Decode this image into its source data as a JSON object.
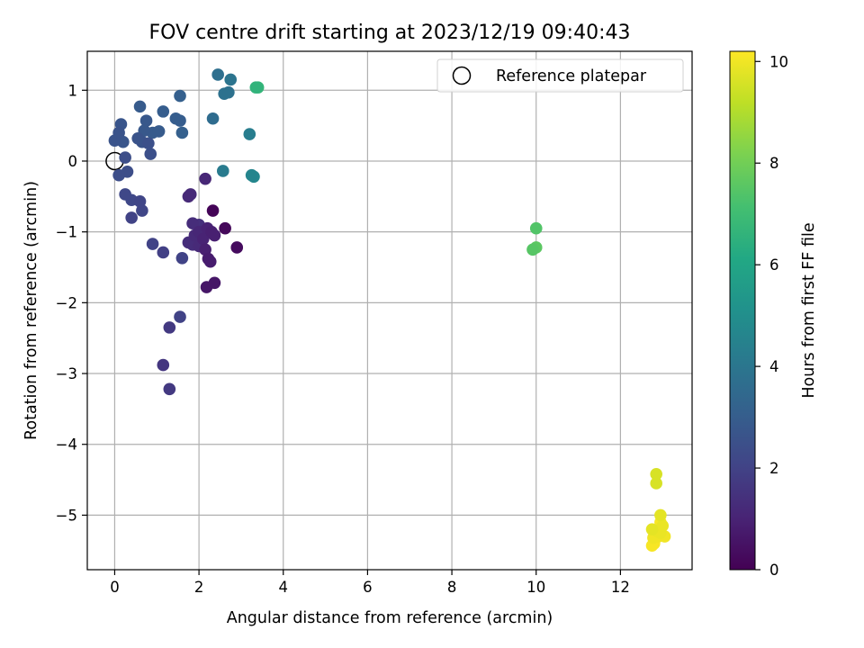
{
  "chart_data": {
    "type": "scatter",
    "title": "FOV centre drift starting at 2023/12/19 09:40:43",
    "xlabel": "Angular distance from reference (arcmin)",
    "ylabel": "Rotation from reference (arcmin)",
    "xlim": [
      -0.65,
      13.7
    ],
    "ylim": [
      -5.77,
      1.55
    ],
    "xticks": [
      0,
      2,
      4,
      6,
      8,
      10,
      12
    ],
    "yticks": [
      -5,
      -4,
      -3,
      -2,
      -1,
      0,
      1
    ],
    "grid": true,
    "legend": {
      "position": "top-right",
      "entries": [
        {
          "label": "Reference platepar",
          "marker": "open-circle"
        }
      ]
    },
    "reference_point": {
      "x": 0,
      "y": 0
    },
    "colorbar": {
      "label": "Hours from first FF file",
      "colormap": "viridis",
      "range": [
        0,
        10.2
      ],
      "ticks": [
        0,
        2,
        4,
        6,
        8,
        10
      ]
    },
    "points": [
      {
        "x": 2.33,
        "y": -0.7,
        "c": 0.1
      },
      {
        "x": 2.62,
        "y": -0.95,
        "c": 0.2
      },
      {
        "x": 2.9,
        "y": -1.22,
        "c": 0.3
      },
      {
        "x": 2.18,
        "y": -1.78,
        "c": 0.6
      },
      {
        "x": 2.37,
        "y": -1.72,
        "c": 0.6
      },
      {
        "x": 2.22,
        "y": -1.38,
        "c": 0.8
      },
      {
        "x": 2.27,
        "y": -1.42,
        "c": 0.8
      },
      {
        "x": 2.15,
        "y": -1.25,
        "c": 0.9
      },
      {
        "x": 2.3,
        "y": -1.0,
        "c": 0.9
      },
      {
        "x": 2.37,
        "y": -1.05,
        "c": 0.9
      },
      {
        "x": 2.2,
        "y": -0.95,
        "c": 1.0
      },
      {
        "x": 2.1,
        "y": -1.1,
        "c": 1.0
      },
      {
        "x": 2.0,
        "y": -1.0,
        "c": 1.1
      },
      {
        "x": 1.9,
        "y": -1.05,
        "c": 1.2
      },
      {
        "x": 2.0,
        "y": -1.2,
        "c": 1.2
      },
      {
        "x": 1.85,
        "y": -1.18,
        "c": 1.3
      },
      {
        "x": 1.75,
        "y": -1.15,
        "c": 1.3
      },
      {
        "x": 1.85,
        "y": -0.88,
        "c": 1.3
      },
      {
        "x": 2.0,
        "y": -0.9,
        "c": 1.4
      },
      {
        "x": 2.15,
        "y": -0.25,
        "c": 1.1
      },
      {
        "x": 1.8,
        "y": -0.47,
        "c": 1.2
      },
      {
        "x": 1.75,
        "y": -0.5,
        "c": 1.2
      },
      {
        "x": 1.15,
        "y": -2.88,
        "c": 1.6
      },
      {
        "x": 1.3,
        "y": -2.35,
        "c": 1.7
      },
      {
        "x": 1.3,
        "y": -3.22,
        "c": 1.7
      },
      {
        "x": 1.55,
        "y": -2.2,
        "c": 2.0
      },
      {
        "x": 1.6,
        "y": -1.37,
        "c": 2.0
      },
      {
        "x": 1.15,
        "y": -1.29,
        "c": 1.9
      },
      {
        "x": 0.9,
        "y": -1.17,
        "c": 2.0
      },
      {
        "x": 0.4,
        "y": -0.8,
        "c": 2.0
      },
      {
        "x": 0.65,
        "y": -0.7,
        "c": 2.1
      },
      {
        "x": 0.6,
        "y": -0.57,
        "c": 2.1
      },
      {
        "x": 0.4,
        "y": -0.55,
        "c": 2.2
      },
      {
        "x": 0.25,
        "y": -0.47,
        "c": 2.2
      },
      {
        "x": 0.3,
        "y": -0.15,
        "c": 2.4
      },
      {
        "x": 0.1,
        "y": -0.2,
        "c": 2.4
      },
      {
        "x": 0.25,
        "y": 0.05,
        "c": 2.4
      },
      {
        "x": 0.85,
        "y": 0.1,
        "c": 2.5
      },
      {
        "x": 0.8,
        "y": 0.25,
        "c": 2.5
      },
      {
        "x": 0.65,
        "y": 0.27,
        "c": 2.6
      },
      {
        "x": 0.55,
        "y": 0.32,
        "c": 2.6
      },
      {
        "x": 0.0,
        "y": 0.29,
        "c": 2.6
      },
      {
        "x": 0.1,
        "y": 0.4,
        "c": 2.6
      },
      {
        "x": 0.15,
        "y": 0.52,
        "c": 2.7
      },
      {
        "x": 0.2,
        "y": 0.27,
        "c": 2.7
      },
      {
        "x": 0.7,
        "y": 0.43,
        "c": 2.8
      },
      {
        "x": 0.75,
        "y": 0.57,
        "c": 2.8
      },
      {
        "x": 0.9,
        "y": 0.4,
        "c": 2.9
      },
      {
        "x": 1.05,
        "y": 0.42,
        "c": 2.9
      },
      {
        "x": 0.6,
        "y": 0.77,
        "c": 2.9
      },
      {
        "x": 1.15,
        "y": 0.7,
        "c": 3.0
      },
      {
        "x": 1.45,
        "y": 0.6,
        "c": 3.0
      },
      {
        "x": 1.55,
        "y": 0.57,
        "c": 3.0
      },
      {
        "x": 1.55,
        "y": 0.92,
        "c": 3.1
      },
      {
        "x": 1.6,
        "y": 0.4,
        "c": 3.1
      },
      {
        "x": 2.33,
        "y": 0.6,
        "c": 3.6
      },
      {
        "x": 2.45,
        "y": 1.22,
        "c": 3.7
      },
      {
        "x": 2.6,
        "y": 0.95,
        "c": 3.8
      },
      {
        "x": 2.7,
        "y": 0.97,
        "c": 3.8
      },
      {
        "x": 2.75,
        "y": 1.15,
        "c": 3.9
      },
      {
        "x": 2.57,
        "y": -0.14,
        "c": 4.2
      },
      {
        "x": 3.2,
        "y": 0.38,
        "c": 4.3
      },
      {
        "x": 3.25,
        "y": -0.2,
        "c": 4.6
      },
      {
        "x": 3.3,
        "y": -0.22,
        "c": 4.7
      },
      {
        "x": 3.35,
        "y": 1.04,
        "c": 6.6
      },
      {
        "x": 3.4,
        "y": 1.04,
        "c": 6.7
      },
      {
        "x": 10.0,
        "y": -0.95,
        "c": 7.4
      },
      {
        "x": 9.92,
        "y": -1.25,
        "c": 7.5
      },
      {
        "x": 10.0,
        "y": -1.22,
        "c": 7.6
      },
      {
        "x": 12.85,
        "y": -4.42,
        "c": 9.6
      },
      {
        "x": 12.85,
        "y": -4.55,
        "c": 9.6
      },
      {
        "x": 12.95,
        "y": -5.0,
        "c": 9.8
      },
      {
        "x": 12.75,
        "y": -5.2,
        "c": 9.8
      },
      {
        "x": 12.85,
        "y": -5.22,
        "c": 9.9
      },
      {
        "x": 12.95,
        "y": -5.25,
        "c": 9.9
      },
      {
        "x": 13.0,
        "y": -5.15,
        "c": 9.9
      },
      {
        "x": 12.78,
        "y": -5.32,
        "c": 10.0
      },
      {
        "x": 12.9,
        "y": -5.3,
        "c": 10.0
      },
      {
        "x": 13.05,
        "y": -5.3,
        "c": 10.0
      },
      {
        "x": 12.8,
        "y": -5.4,
        "c": 10.1
      },
      {
        "x": 12.75,
        "y": -5.43,
        "c": 10.1
      },
      {
        "x": 12.95,
        "y": -5.1,
        "c": 10.1
      }
    ]
  }
}
